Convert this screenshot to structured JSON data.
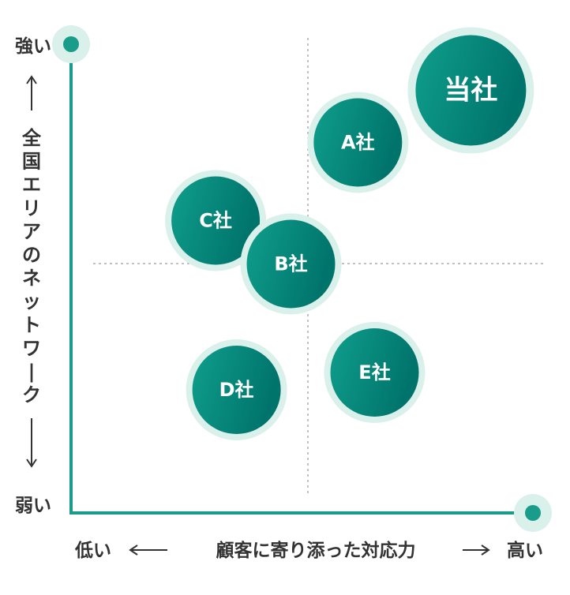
{
  "chart_data": {
    "type": "scatter",
    "xlabel": "顧客に寄り添った対応力",
    "ylabel": "全国エリアのネットワーク",
    "x_low_label": "低い",
    "x_high_label": "高い",
    "y_high_label": "強い",
    "y_low_label": "弱い",
    "xlim": [
      0,
      100
    ],
    "ylim": [
      0,
      100
    ],
    "grid": "center-crosshair",
    "points": [
      {
        "label": "当社",
        "x": 88,
        "y": 91,
        "size": "large"
      },
      {
        "label": "A社",
        "x": 61,
        "y": 79,
        "size": "medium"
      },
      {
        "label": "C社",
        "x": 27,
        "y": 61,
        "size": "medium"
      },
      {
        "label": "B社",
        "x": 45,
        "y": 51,
        "size": "medium"
      },
      {
        "label": "E社",
        "x": 65,
        "y": 26,
        "size": "medium"
      },
      {
        "label": "D社",
        "x": 32,
        "y": 22,
        "size": "medium"
      }
    ],
    "colors": {
      "axis": "#1a9c8a",
      "bubble_start": "#0f9e8c",
      "bubble_end": "#00736b",
      "halo": "#d9f0eb",
      "grid": "#9a9a9a"
    }
  }
}
